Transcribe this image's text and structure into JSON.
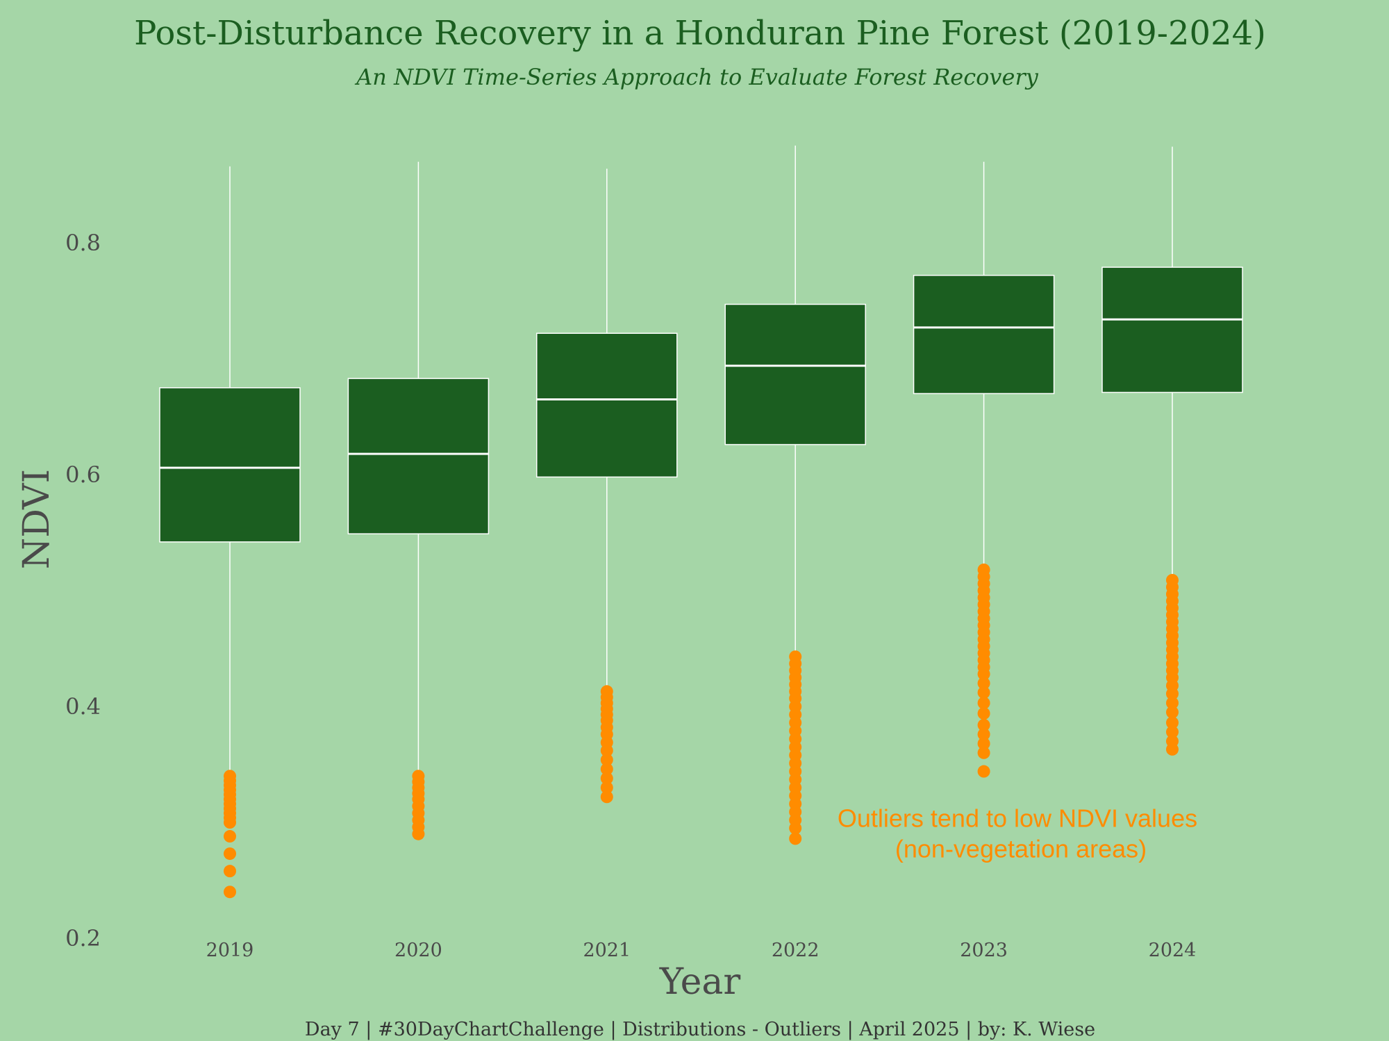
{
  "chart_data": {
    "type": "box",
    "title": "Post-Disturbance Recovery in a Honduran Pine Forest (2019-2024)",
    "subtitle": "An NDVI Time-Series  Approach to Evaluate Forest Recovery",
    "xlabel": "Year",
    "ylabel": "NDVI",
    "ylim": [
      0.2,
      0.885
    ],
    "yticks": [
      0.2,
      0.4,
      0.6,
      0.8
    ],
    "grid": false,
    "categories": [
      "2019",
      "2020",
      "2021",
      "2022",
      "2023",
      "2024"
    ],
    "boxes": [
      {
        "year": "2019",
        "whisker_low": 0.342,
        "q1": 0.542,
        "median": 0.606,
        "q3": 0.675,
        "whisker_high": 0.866,
        "outliers": [
          0.34,
          0.336,
          0.332,
          0.328,
          0.324,
          0.32,
          0.316,
          0.312,
          0.308,
          0.304,
          0.3,
          0.288,
          0.273,
          0.258,
          0.24
        ]
      },
      {
        "year": "2020",
        "whisker_low": 0.342,
        "q1": 0.549,
        "median": 0.618,
        "q3": 0.683,
        "whisker_high": 0.87,
        "outliers": [
          0.34,
          0.335,
          0.33,
          0.325,
          0.32,
          0.314,
          0.308,
          0.302,
          0.296,
          0.29
        ]
      },
      {
        "year": "2021",
        "whisker_low": 0.415,
        "q1": 0.598,
        "median": 0.665,
        "q3": 0.722,
        "whisker_high": 0.864,
        "outliers": [
          0.413,
          0.408,
          0.403,
          0.398,
          0.393,
          0.388,
          0.382,
          0.376,
          0.369,
          0.362,
          0.354,
          0.346,
          0.338,
          0.33,
          0.322
        ]
      },
      {
        "year": "2022",
        "whisker_low": 0.445,
        "q1": 0.626,
        "median": 0.694,
        "q3": 0.747,
        "whisker_high": 0.884,
        "outliers": [
          0.443,
          0.437,
          0.431,
          0.425,
          0.419,
          0.413,
          0.407,
          0.4,
          0.393,
          0.386,
          0.379,
          0.372,
          0.365,
          0.358,
          0.351,
          0.344,
          0.337,
          0.33,
          0.323,
          0.316,
          0.309,
          0.302,
          0.295,
          0.286
        ]
      },
      {
        "year": "2023",
        "whisker_low": 0.519,
        "q1": 0.67,
        "median": 0.727,
        "q3": 0.772,
        "whisker_high": 0.87,
        "outliers": [
          0.518,
          0.512,
          0.506,
          0.5,
          0.494,
          0.488,
          0.482,
          0.476,
          0.47,
          0.464,
          0.458,
          0.452,
          0.446,
          0.44,
          0.434,
          0.428,
          0.42,
          0.412,
          0.403,
          0.394,
          0.384,
          0.376,
          0.368,
          0.36,
          0.344
        ]
      },
      {
        "year": "2024",
        "whisker_low": 0.51,
        "q1": 0.671,
        "median": 0.734,
        "q3": 0.779,
        "whisker_high": 0.883,
        "outliers": [
          0.509,
          0.503,
          0.497,
          0.491,
          0.485,
          0.479,
          0.473,
          0.467,
          0.461,
          0.455,
          0.449,
          0.443,
          0.437,
          0.431,
          0.425,
          0.418,
          0.411,
          0.403,
          0.395,
          0.386,
          0.378,
          0.37,
          0.363
        ]
      }
    ],
    "annotation": {
      "lines": [
        "Outliers tend to low NDVI values",
        "(non-vegetation areas)"
      ],
      "near_year": "2023",
      "y": 0.28
    },
    "caption": "Day 7 |  #30DayChartChallenge |  Distributions -  Outliers |  April 2025 |  by: K. Wiese",
    "colors": {
      "background": "#a5d6a7",
      "box_fill": "#1b5e20",
      "box_line": "#ffffff",
      "outlier": "#ff8c00",
      "title": "#1b5e20",
      "axis_text": "#4a4a4a",
      "annotation": "#ff8c00"
    }
  }
}
